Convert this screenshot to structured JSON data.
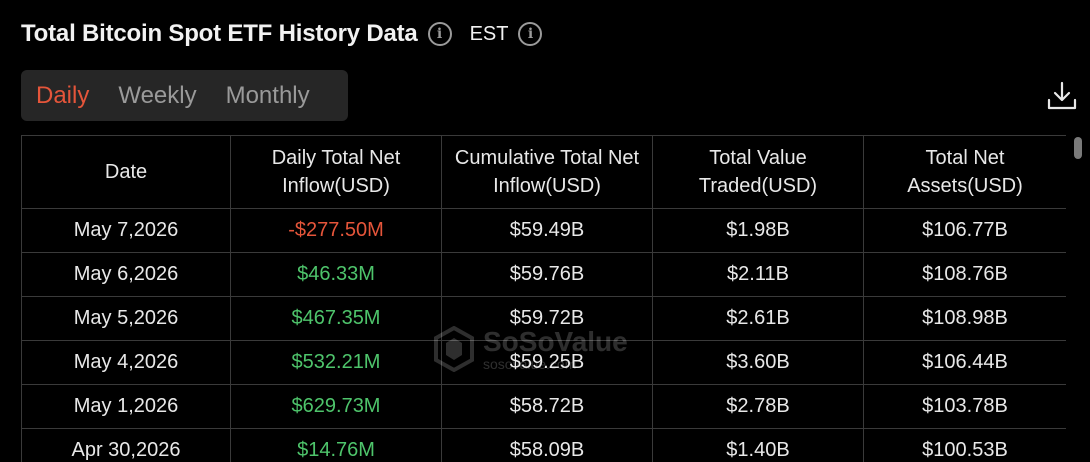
{
  "header": {
    "title": "Total Bitcoin Spot ETF History Data",
    "timezone": "EST"
  },
  "tabs": [
    {
      "label": "Daily",
      "active": true
    },
    {
      "label": "Weekly",
      "active": false
    },
    {
      "label": "Monthly",
      "active": false
    }
  ],
  "table": {
    "columns": [
      "Date",
      "Daily Total Net Inflow(USD)",
      "Cumulative Total Net Inflow(USD)",
      "Total Value Traded(USD)",
      "Total Net Assets(USD)"
    ],
    "rows": [
      {
        "date": "May 7,2026",
        "inflow": "-$277.50M",
        "inflow_sign": "neg",
        "cumulative": "$59.49B",
        "traded": "$1.98B",
        "assets": "$106.77B"
      },
      {
        "date": "May 6,2026",
        "inflow": "$46.33M",
        "inflow_sign": "pos",
        "cumulative": "$59.76B",
        "traded": "$2.11B",
        "assets": "$108.76B"
      },
      {
        "date": "May 5,2026",
        "inflow": "$467.35M",
        "inflow_sign": "pos",
        "cumulative": "$59.72B",
        "traded": "$2.61B",
        "assets": "$108.98B"
      },
      {
        "date": "May 4,2026",
        "inflow": "$532.21M",
        "inflow_sign": "pos",
        "cumulative": "$59.25B",
        "traded": "$3.60B",
        "assets": "$106.44B"
      },
      {
        "date": "May 1,2026",
        "inflow": "$629.73M",
        "inflow_sign": "pos",
        "cumulative": "$58.72B",
        "traded": "$2.78B",
        "assets": "$103.78B"
      },
      {
        "date": "Apr 30,2026",
        "inflow": "$14.76M",
        "inflow_sign": "pos",
        "cumulative": "$58.09B",
        "traded": "$1.40B",
        "assets": "$100.53B"
      }
    ]
  },
  "watermark": {
    "name": "SoSoValue",
    "url": "sosovalue.com"
  },
  "icons": {
    "info": "info-icon",
    "download": "download-icon"
  },
  "colors": {
    "positive": "#4ec46b",
    "negative": "#e5553a",
    "active_tab": "#e5553a"
  }
}
